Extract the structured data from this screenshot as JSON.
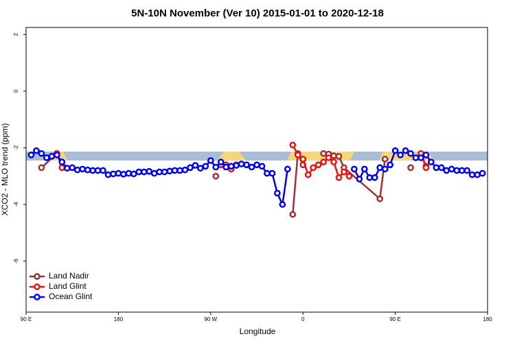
{
  "chart_data": {
    "type": "line",
    "title": "5N-10N November (Ver 10)   2015-01-01 to 2020-12-18",
    "xlabel": "Longitude",
    "ylabel": "XCO2 - MLO trend (ppm)",
    "xlim": [
      90,
      540
    ],
    "ylim": [
      -7.8,
      2.25
    ],
    "xticks": [
      {
        "value": 90,
        "label": "90 E"
      },
      {
        "value": 180,
        "label": "180"
      },
      {
        "value": 270,
        "label": "90 W"
      },
      {
        "value": 360,
        "label": "0"
      },
      {
        "value": 450,
        "label": "90 E"
      },
      {
        "value": 540,
        "label": "180"
      }
    ],
    "yticks": [
      2,
      0,
      -2,
      -4,
      -6
    ],
    "legend": "bottom-left",
    "series": [
      {
        "name": "Land Nadir",
        "color": "#993333",
        "x": [
          105,
          120,
          125,
          275,
          280,
          350,
          355,
          360,
          365,
          380,
          385,
          390,
          395,
          400,
          435,
          440,
          445,
          465,
          470,
          475,
          480
        ],
        "values": [
          -2.7,
          -2.2,
          null,
          -3.0,
          null,
          -4.35,
          -2.2,
          -2.6,
          null,
          -2.2,
          -2.22,
          -2.28,
          -2.3,
          -2.7,
          -3.8,
          -2.4,
          null,
          -2.7,
          null,
          -2.2,
          -2.65
        ]
      },
      {
        "name": "Land Glint",
        "color": "#ee1111",
        "x": [
          120,
          125,
          130,
          280,
          285,
          290,
          295,
          300,
          350,
          355,
          360,
          365,
          370,
          375,
          380,
          385,
          390,
          395,
          400,
          405,
          410,
          475,
          480
        ],
        "values": [
          -2.2,
          -2.7,
          null,
          -2.6,
          -2.6,
          -2.75,
          -2.6,
          null,
          -1.9,
          -2.25,
          -2.4,
          -2.95,
          -2.7,
          -2.6,
          -2.5,
          -2.35,
          -2.5,
          -3.05,
          -2.85,
          -3.0,
          null,
          -2.2,
          -2.7
        ]
      },
      {
        "name": "Ocean Glint",
        "color": "#0000ee",
        "x": [
          95,
          100,
          105,
          110,
          115,
          120,
          125,
          130,
          135,
          140,
          145,
          150,
          155,
          160,
          165,
          170,
          175,
          180,
          185,
          190,
          195,
          200,
          205,
          210,
          215,
          220,
          225,
          230,
          235,
          240,
          245,
          250,
          255,
          260,
          265,
          270,
          275,
          280,
          285,
          290,
          295,
          300,
          305,
          310,
          315,
          320,
          325,
          330,
          335,
          340,
          345,
          350,
          355,
          360,
          365,
          410,
          415,
          420,
          425,
          430,
          435,
          440,
          445,
          450,
          455,
          460,
          465,
          470,
          475,
          480,
          485,
          490,
          495,
          500,
          505,
          510,
          515,
          520,
          525,
          530,
          535
        ],
        "values": [
          -2.25,
          -2.1,
          -2.2,
          -2.35,
          -2.3,
          -2.25,
          -2.5,
          -2.72,
          -2.7,
          -2.78,
          -2.75,
          -2.78,
          -2.8,
          -2.8,
          -2.8,
          -2.95,
          -2.92,
          -2.9,
          -2.93,
          -2.9,
          -2.92,
          -2.85,
          -2.85,
          -2.83,
          -2.9,
          -2.85,
          -2.85,
          -2.82,
          -2.8,
          -2.8,
          -2.78,
          -2.7,
          -2.62,
          -2.72,
          -2.65,
          -2.45,
          -2.68,
          -2.5,
          -2.68,
          -2.65,
          -2.62,
          -2.57,
          -2.6,
          -2.68,
          -2.6,
          -2.65,
          -2.9,
          -2.9,
          -3.6,
          -4.0,
          -2.75,
          null,
          null,
          null,
          null,
          -2.75,
          -3.1,
          -2.75,
          -3.05,
          -3.05,
          -2.7,
          -2.75,
          -2.6,
          -2.1,
          -2.25,
          -2.1,
          -2.2,
          -2.35,
          -2.35,
          -2.25,
          -2.5,
          -2.7,
          -2.7,
          -2.8,
          -2.75,
          -2.8,
          -2.8,
          -2.8,
          -2.95,
          -2.95,
          -2.9
        ]
      }
    ]
  }
}
